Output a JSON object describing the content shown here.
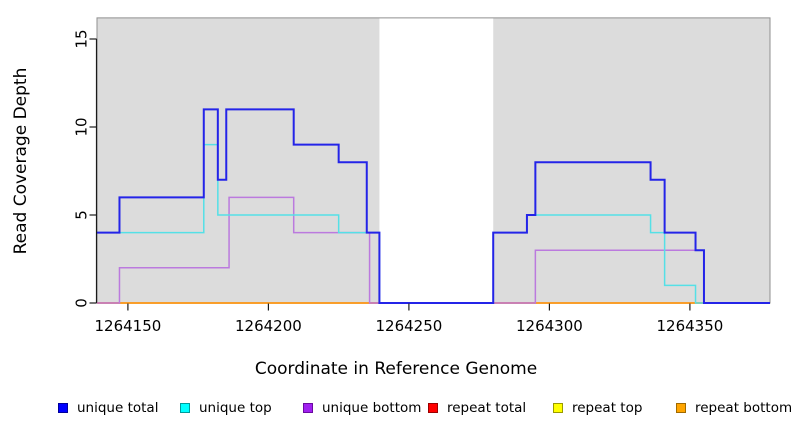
{
  "figure": {
    "x_axis_title": "Coordinate in Reference Genome",
    "y_axis_title": "Read Coverage Depth"
  },
  "chart_data": {
    "type": "line",
    "subtype": "step-coverage-plot",
    "title": "",
    "xlabel": "Coordinate in Reference Genome",
    "ylabel": "Read Coverage Depth",
    "xlim": [
      1264139,
      1264378.5
    ],
    "ylim": [
      0,
      16.2
    ],
    "x_ticks": [
      1264150,
      1264200,
      1264250,
      1264300,
      1264350
    ],
    "y_ticks": [
      0,
      5,
      10,
      15
    ],
    "grid": false,
    "legend_position": "bottom",
    "plot_background_color": "#dcdcdc",
    "plot_border_color": "#8f8f8f",
    "shaded_regions": [
      [
        1264139,
        1264239.5
      ],
      [
        1264280,
        1264378.5
      ]
    ],
    "white_gap_region": [
      1264239.5,
      1264280
    ],
    "draw_order": [
      "repeat top",
      "repeat total",
      "repeat bottom",
      "unique bottom",
      "unique top",
      "unique total"
    ],
    "series": [
      {
        "name": "unique total",
        "line_color": "#2424e8",
        "legend_fill": "#0000ff",
        "legend_border": "#00009a",
        "line_width": 2,
        "step_points": [
          [
            1264139,
            4
          ],
          [
            1264147,
            6
          ],
          [
            1264177,
            11
          ],
          [
            1264182,
            7
          ],
          [
            1264185,
            11
          ],
          [
            1264209,
            9
          ],
          [
            1264225,
            8
          ],
          [
            1264235,
            4
          ],
          [
            1264239.5,
            0
          ],
          [
            1264280,
            4
          ],
          [
            1264292,
            5
          ],
          [
            1264295,
            8
          ],
          [
            1264336,
            7
          ],
          [
            1264341,
            4
          ],
          [
            1264352,
            3
          ],
          [
            1264355,
            0
          ]
        ]
      },
      {
        "name": "unique top",
        "line_color": "#55e0e6",
        "legend_fill": "#00ffff",
        "legend_border": "#009a9a",
        "line_width": 1.5,
        "step_points": [
          [
            1264139,
            4
          ],
          [
            1264177,
            9
          ],
          [
            1264182,
            5
          ],
          [
            1264225,
            4
          ],
          [
            1264239.5,
            0
          ],
          [
            1264280,
            4
          ],
          [
            1264292,
            5
          ],
          [
            1264336,
            4
          ],
          [
            1264341,
            1
          ],
          [
            1264352,
            0
          ]
        ]
      },
      {
        "name": "unique bottom",
        "line_color": "#bb7ade",
        "legend_fill": "#a020f0",
        "legend_border": "#6a0aa0",
        "line_width": 1.5,
        "step_points": [
          [
            1264139,
            0
          ],
          [
            1264147,
            2
          ],
          [
            1264186,
            6
          ],
          [
            1264209,
            4
          ],
          [
            1264236,
            0
          ],
          [
            1264295,
            3
          ],
          [
            1264355,
            0
          ]
        ]
      },
      {
        "name": "repeat total",
        "line_color": "#e02020",
        "legend_fill": "#ff0000",
        "legend_border": "#9a0000",
        "line_width": 1.5,
        "step_points": [
          [
            1264139,
            0
          ]
        ]
      },
      {
        "name": "repeat top",
        "line_color": "#f5f500",
        "legend_fill": "#ffff00",
        "legend_border": "#9a9a00",
        "line_width": 1.5,
        "step_points": [
          [
            1264139,
            0
          ]
        ]
      },
      {
        "name": "repeat bottom",
        "line_color": "#ffa520",
        "legend_fill": "#ffa500",
        "legend_border": "#a06a00",
        "line_width": 1.5,
        "step_points": [
          [
            1264139,
            0
          ]
        ]
      }
    ]
  }
}
